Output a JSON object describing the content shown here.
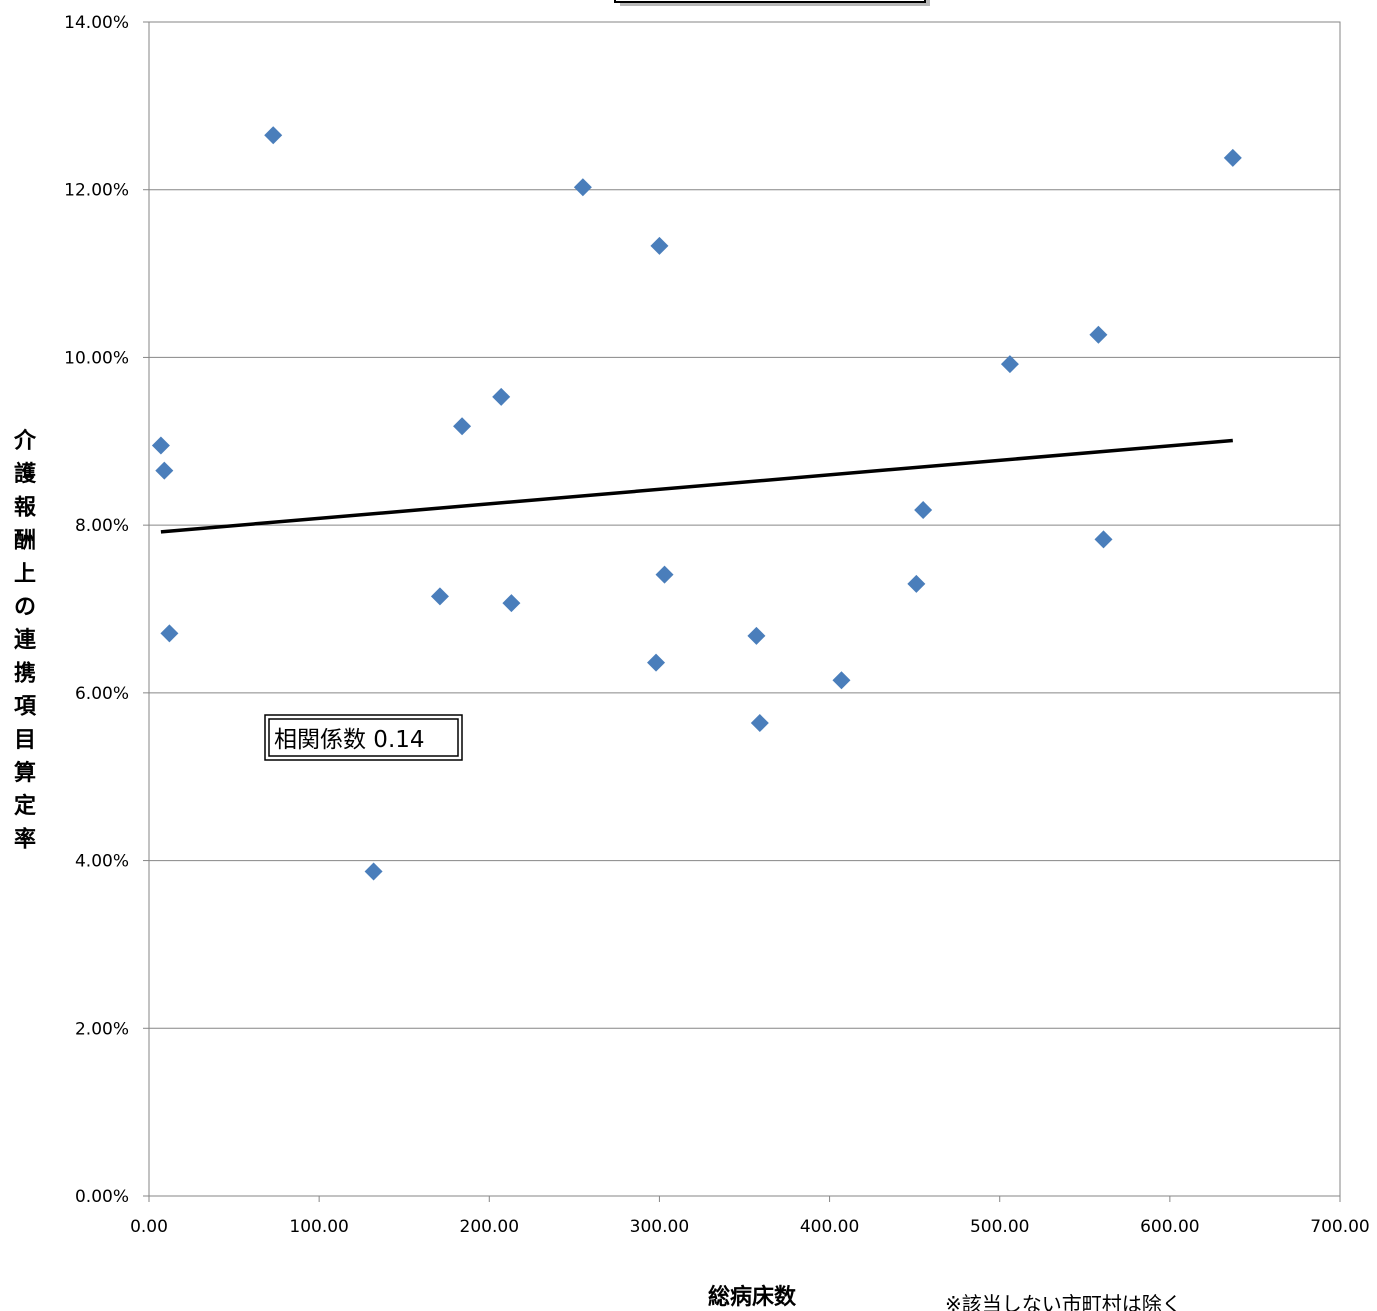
{
  "chart_data": {
    "type": "scatter",
    "title": "",
    "xlabel": "総病床数",
    "ylabel": "介護報酬上の連携項目算定率",
    "xlim": [
      0,
      700
    ],
    "ylim": [
      0,
      14
    ],
    "x_ticks": [
      "0.00",
      "100.00",
      "200.00",
      "300.00",
      "400.00",
      "500.00",
      "600.00",
      "700.00"
    ],
    "y_ticks": [
      "0.00%",
      "2.00%",
      "4.00%",
      "6.00%",
      "8.00%",
      "10.00%",
      "12.00%",
      "14.00%"
    ],
    "y_unit": "%",
    "grid": "horizontal",
    "marker_color": "#4a7ebb",
    "trendline_color": "#000000",
    "series": [
      {
        "points": [
          {
            "x": 7,
            "y": 8.95
          },
          {
            "x": 9,
            "y": 8.65
          },
          {
            "x": 12,
            "y": 6.71
          },
          {
            "x": 73,
            "y": 12.65
          },
          {
            "x": 132,
            "y": 3.87
          },
          {
            "x": 171,
            "y": 7.15
          },
          {
            "x": 184,
            "y": 9.18
          },
          {
            "x": 207,
            "y": 9.53
          },
          {
            "x": 213,
            "y": 7.07
          },
          {
            "x": 255,
            "y": 12.03
          },
          {
            "x": 298,
            "y": 6.36
          },
          {
            "x": 300,
            "y": 11.33
          },
          {
            "x": 303,
            "y": 7.41
          },
          {
            "x": 357,
            "y": 6.68
          },
          {
            "x": 359,
            "y": 5.64
          },
          {
            "x": 407,
            "y": 6.15
          },
          {
            "x": 451,
            "y": 7.3
          },
          {
            "x": 455,
            "y": 8.18
          },
          {
            "x": 506,
            "y": 9.92
          },
          {
            "x": 558,
            "y": 10.27
          },
          {
            "x": 561,
            "y": 7.83
          },
          {
            "x": 637,
            "y": 12.38
          }
        ]
      }
    ],
    "trendline": [
      {
        "x": 7,
        "y": 7.92
      },
      {
        "x": 637,
        "y": 9.01
      }
    ],
    "annotations": {
      "correlation": "相関係数 0.14",
      "note": "※該当しない市町村は除く"
    }
  }
}
